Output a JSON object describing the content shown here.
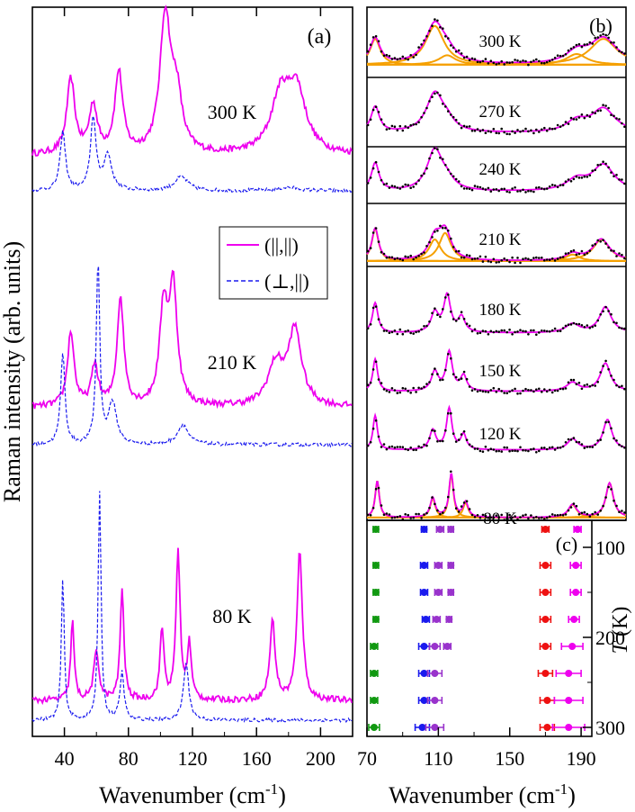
{
  "chart_data": [
    {
      "panel": "(a)",
      "type": "line",
      "xlabel": "Wavenumber (cm",
      "xlabel_sup": "-1",
      "xlabel_end": ")",
      "ylabel": "Raman intensity (arb. units)",
      "xlim": [
        20,
        220
      ],
      "xticks": [
        40,
        80,
        120,
        160,
        200
      ],
      "legend": [
        {
          "label": "(||,||)",
          "color": "#ee00ee",
          "style": "solid"
        },
        {
          "label": "(⊥,||)",
          "color": "#1a1aee",
          "style": "dashed"
        }
      ],
      "offset_groups": [
        {
          "label": "300 K",
          "series": [
            {
              "name": "(||,||)",
              "peaks": [
                [
                  44,
                  0.55,
                  3
                ],
                [
                  58,
                  0.35,
                  3
                ],
                [
                  74,
                  0.6,
                  3
                ],
                [
                  103,
                  1.0,
                  4
                ],
                [
                  110,
                  0.4,
                  4
                ],
                [
                  175,
                  0.4,
                  7
                ],
                [
                  185,
                  0.45,
                  7
                ]
              ],
              "baseline": 0.05
            },
            {
              "name": "(⊥,||)",
              "peaks": [
                [
                  39,
                  0.5,
                  2
                ],
                [
                  58,
                  0.62,
                  2
                ],
                [
                  67,
                  0.3,
                  3
                ],
                [
                  113,
                  0.12,
                  5
                ],
                [
                  180,
                  0.03,
                  8
                ]
              ],
              "baseline": 0.0
            }
          ]
        },
        {
          "label": "210 K",
          "series": [
            {
              "name": "(||,||)",
              "peaks": [
                [
                  44,
                  0.55,
                  2.5
                ],
                [
                  59,
                  0.3,
                  2.5
                ],
                [
                  75,
                  0.8,
                  2.5
                ],
                [
                  102,
                  0.7,
                  3
                ],
                [
                  108,
                  0.85,
                  3
                ],
                [
                  172,
                  0.3,
                  6
                ],
                [
                  184,
                  0.55,
                  5
                ]
              ],
              "baseline": 0.05
            },
            {
              "name": "(⊥,||)",
              "peaks": [
                [
                  39,
                  0.55,
                  1.6
                ],
                [
                  61,
                  1.1,
                  1.3
                ],
                [
                  70,
                  0.25,
                  3
                ],
                [
                  114,
                  0.12,
                  4
                ]
              ],
              "baseline": 0.0
            }
          ]
        },
        {
          "label": "80 K",
          "series": [
            {
              "name": "(||,||)",
              "peaks": [
                [
                  45,
                  0.5,
                  1.3
                ],
                [
                  60,
                  0.3,
                  2
                ],
                [
                  76,
                  0.7,
                  1.4
                ],
                [
                  101,
                  0.45,
                  1.5
                ],
                [
                  111,
                  0.95,
                  1.5
                ],
                [
                  118,
                  0.35,
                  1.5
                ],
                [
                  170,
                  0.5,
                  2
                ],
                [
                  187,
                  0.95,
                  2
                ]
              ],
              "baseline": 0.05
            },
            {
              "name": "(⊥,||)",
              "peaks": [
                [
                  39,
                  0.75,
                  1.1
                ],
                [
                  62,
                  1.2,
                  1.1
                ],
                [
                  76,
                  0.25,
                  1.5
                ],
                [
                  116,
                  0.3,
                  2
                ]
              ],
              "baseline": 0.0
            }
          ]
        }
      ]
    },
    {
      "panel": "(b)",
      "type": "line+scatter",
      "xlabel": "Wavenumber (cm",
      "xlabel_sup": "-1",
      "xlabel_end": ")",
      "xlim": [
        70,
        196
      ],
      "colors": {
        "fit": "#ee00ee",
        "components": "#f5a000",
        "data": "#000000"
      },
      "spectra": [
        {
          "label": "300 K",
          "peaks": [
            [
              74,
              0.6,
              3
            ],
            [
              103,
              0.9,
              5.5
            ],
            [
              109,
              0.22,
              5
            ],
            [
              172,
              0.25,
              6
            ],
            [
              185,
              0.6,
              8
            ]
          ],
          "show_components": true
        },
        {
          "label": "270 K",
          "peaks": [
            [
              74,
              0.6,
              2.5
            ],
            [
              103,
              0.9,
              5
            ],
            [
              109,
              0.2,
              4
            ],
            [
              172,
              0.25,
              6
            ],
            [
              185,
              0.55,
              7
            ]
          ],
          "show_components": false
        },
        {
          "label": "240 K",
          "peaks": [
            [
              74,
              0.65,
              2.3
            ],
            [
              103,
              0.95,
              4.5
            ],
            [
              109,
              0.2,
              4
            ],
            [
              172,
              0.25,
              6
            ],
            [
              185,
              0.6,
              6.5
            ]
          ],
          "show_components": false
        },
        {
          "label": "210 K",
          "peaks": [
            [
              74,
              0.75,
              2
            ],
            [
              103,
              0.5,
              3.5
            ],
            [
              108,
              0.65,
              3.5
            ],
            [
              170,
              0.15,
              4
            ],
            [
              184,
              0.5,
              5
            ]
          ],
          "show_components": true
        },
        {
          "label": "180 K",
          "peaks": [
            [
              74,
              0.7,
              1.6
            ],
            [
              103,
              0.45,
              2.2
            ],
            [
              109,
              0.85,
              2
            ],
            [
              116,
              0.35,
              2
            ],
            [
              170,
              0.2,
              4
            ],
            [
              186,
              0.6,
              3.5
            ]
          ],
          "show_components": false
        },
        {
          "label": "150 K",
          "peaks": [
            [
              74,
              0.75,
              1.4
            ],
            [
              103,
              0.45,
              2
            ],
            [
              110,
              0.9,
              1.8
            ],
            [
              117,
              0.35,
              1.8
            ],
            [
              170,
              0.2,
              3.5
            ],
            [
              186,
              0.65,
              3
            ]
          ],
          "show_components": false
        },
        {
          "label": "120 K",
          "peaks": [
            [
              74,
              0.8,
              1.3
            ],
            [
              102,
              0.45,
              1.8
            ],
            [
              110,
              0.95,
              1.6
            ],
            [
              117,
              0.35,
              1.6
            ],
            [
              170,
              0.25,
              3
            ],
            [
              187,
              0.7,
              2.6
            ]
          ],
          "show_components": false
        },
        {
          "label": "80 K",
          "peaks": [
            [
              75,
              0.85,
              1.2
            ],
            [
              102,
              0.45,
              1.5
            ],
            [
              111,
              1.0,
              1.3
            ],
            [
              118,
              0.35,
              1.5
            ],
            [
              170,
              0.3,
              2.5
            ],
            [
              188,
              0.8,
              2.2
            ]
          ],
          "show_components": true
        }
      ]
    },
    {
      "panel": "(c)",
      "type": "scatter",
      "xlabel": "Wavenumber (cm",
      "xlabel_sup": "-1",
      "xlabel_end": ")",
      "ylabel_italic": "T",
      "ylabel_rest": " (K)",
      "xlim": [
        70,
        196
      ],
      "ylim": [
        70,
        310
      ],
      "xticks": [
        70,
        110,
        150,
        190
      ],
      "yticks": [
        100,
        200,
        300
      ],
      "series": [
        {
          "color": "#119911",
          "points": [
            [
              75,
              80,
              1.5
            ],
            [
              75,
              120,
              1.5
            ],
            [
              75,
              150,
              1.5
            ],
            [
              75,
              180,
              1.5
            ],
            [
              74,
              210,
              2
            ],
            [
              74,
              240,
              2
            ],
            [
              74,
              270,
              2
            ],
            [
              74,
              300,
              3
            ]
          ]
        },
        {
          "color": "#1a1aee",
          "points": [
            [
              102,
              80,
              1.5
            ],
            [
              102,
              120,
              2
            ],
            [
              102,
              150,
              2
            ],
            [
              103,
              180,
              2
            ],
            [
              102,
              210,
              3
            ],
            [
              102,
              240,
              3
            ],
            [
              102,
              270,
              3
            ],
            [
              101,
              300,
              4
            ]
          ]
        },
        {
          "color": "#9933cc",
          "points": [
            [
              111,
              80,
              2
            ],
            [
              110,
              120,
              2
            ],
            [
              110,
              150,
              2
            ],
            [
              109,
              180,
              2
            ],
            [
              108,
              210,
              3
            ],
            [
              108,
              240,
              4
            ],
            [
              108,
              270,
              4
            ],
            [
              108,
              300,
              5
            ]
          ]
        },
        {
          "color": "#9933cc",
          "points": [
            [
              117,
              80,
              1.5
            ],
            [
              117,
              120,
              1.5
            ],
            [
              117,
              150,
              1.5
            ],
            [
              116,
              180,
              1.5
            ],
            [
              115,
              210,
              2
            ]
          ]
        },
        {
          "color": "#ee1111",
          "points": [
            [
              170,
              80,
              2
            ],
            [
              170,
              120,
              3
            ],
            [
              170,
              150,
              3
            ],
            [
              170,
              180,
              3
            ],
            [
              170,
              210,
              3
            ],
            [
              170,
              240,
              4
            ],
            [
              171,
              270,
              4
            ],
            [
              171,
              300,
              4
            ]
          ]
        },
        {
          "color": "#ee00ee",
          "points": [
            [
              188,
              80,
              2
            ],
            [
              187,
              120,
              3
            ],
            [
              187,
              150,
              3
            ],
            [
              186,
              180,
              3
            ],
            [
              185,
              210,
              6
            ],
            [
              183,
              240,
              7
            ],
            [
              183,
              270,
              8
            ],
            [
              183,
              300,
              9
            ]
          ]
        }
      ]
    }
  ]
}
